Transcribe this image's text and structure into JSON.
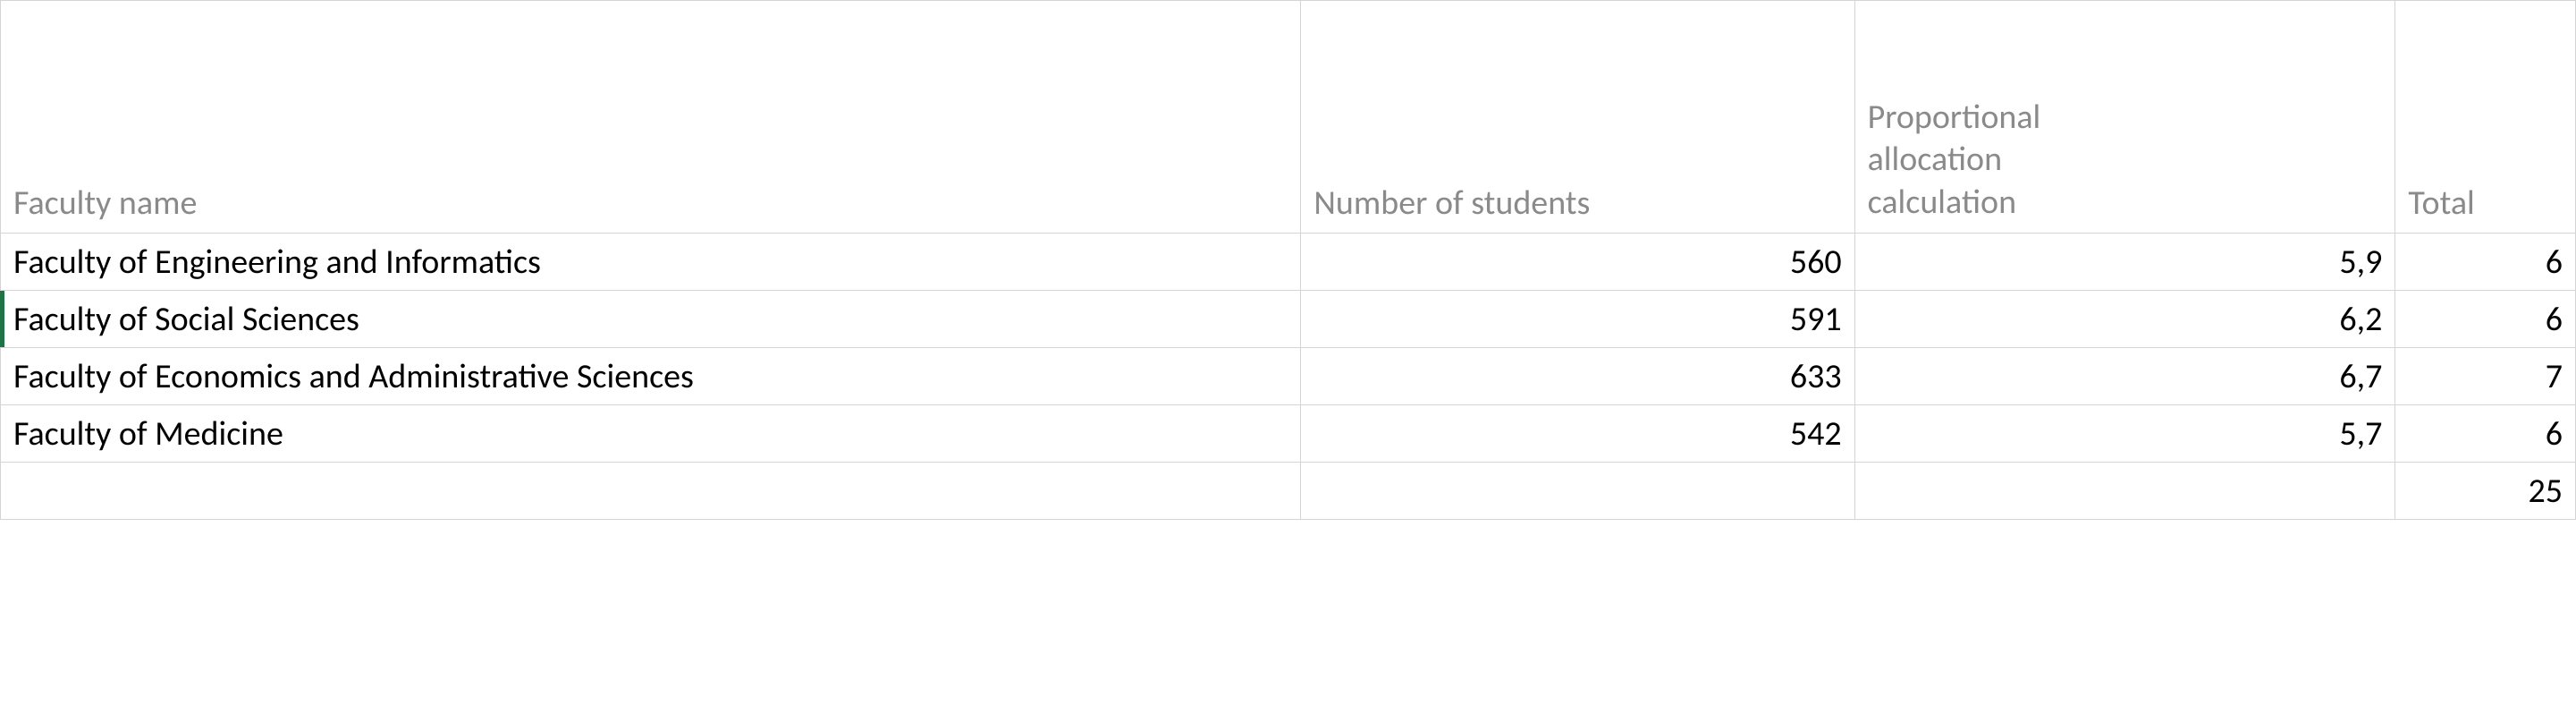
{
  "table": {
    "columns": {
      "faculty": "Faculty name",
      "students": "Number of students",
      "allocation": "Proportional\nallocation\ncalculation",
      "total": "Total"
    },
    "rows": [
      {
        "faculty": "Faculty of Engineering and Informatics",
        "students": "560",
        "allocation": "5,9",
        "total": "6"
      },
      {
        "faculty": "Faculty of Social Sciences",
        "students": "591",
        "allocation": "6,2",
        "total": "6"
      },
      {
        "faculty": "Faculty of Economics and Administrative Sciences",
        "students": "633",
        "allocation": "6,7",
        "total": "7"
      },
      {
        "faculty": "Faculty of Medicine",
        "students": "542",
        "allocation": "5,7",
        "total": "6"
      }
    ],
    "footer": {
      "total": "25"
    }
  },
  "style": {
    "header_color": "#8a8a8a",
    "text_color": "#000000",
    "gridline_color": "#d4d4d4",
    "selected_marker_color": "#217346",
    "background_color": "#ffffff",
    "font_size_pt": 28,
    "selected_row_index": 1,
    "column_widths_pct": [
      50.5,
      21.5,
      21,
      7
    ],
    "alignments": [
      "left",
      "right",
      "right",
      "right"
    ]
  }
}
